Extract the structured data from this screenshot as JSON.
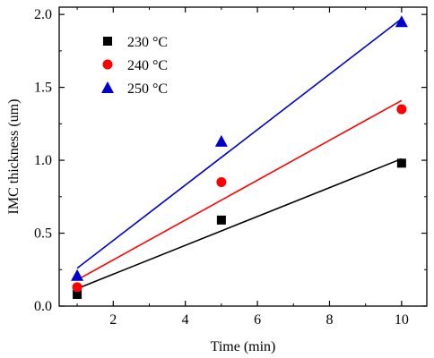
{
  "chart_data": {
    "type": "scatter",
    "title": "",
    "xlabel": "Time (min)",
    "ylabel": "IMC thickness (um)",
    "xlim": [
      0.5,
      10.7
    ],
    "ylim": [
      0.0,
      2.05
    ],
    "xticks": [
      2,
      4,
      6,
      8,
      10
    ],
    "xtick_labels": [
      "2",
      "4",
      "6",
      "8",
      "10"
    ],
    "yticks": [
      0.0,
      0.5,
      1.0,
      1.5,
      2.0
    ],
    "ytick_labels": [
      "0.0",
      "0.5",
      "1.0",
      "1.5",
      "2.0"
    ],
    "grid": false,
    "legend_position": "top-left",
    "series": [
      {
        "name": "230 °C",
        "color": "#000000",
        "marker": "square",
        "x": [
          1,
          5,
          10
        ],
        "y": [
          0.08,
          0.59,
          0.98
        ],
        "fit": [
          [
            1,
            0.12
          ],
          [
            10,
            1.01
          ]
        ]
      },
      {
        "name": "240 °C",
        "color": "#ff0000",
        "marker": "circle",
        "x": [
          1,
          5,
          10
        ],
        "y": [
          0.13,
          0.85,
          1.35
        ],
        "fit": [
          [
            1,
            0.18
          ],
          [
            10,
            1.41
          ]
        ]
      },
      {
        "name": "250 °C",
        "color": "#0000cc",
        "marker": "triangle",
        "x": [
          1,
          5,
          10
        ],
        "y": [
          0.21,
          1.13,
          1.95
        ],
        "fit": [
          [
            1,
            0.26
          ],
          [
            10,
            1.97
          ]
        ]
      }
    ]
  }
}
